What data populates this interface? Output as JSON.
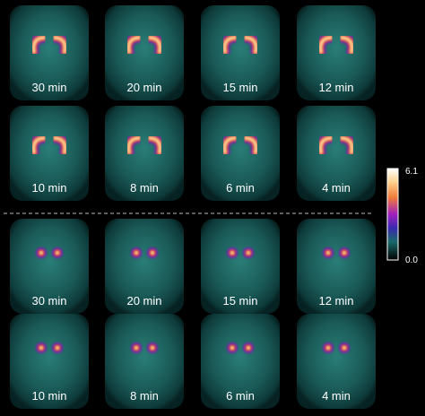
{
  "groups": [
    {
      "rows": [
        [
          "30 min",
          "20 min",
          "15 min",
          "12 min"
        ],
        [
          "10 min",
          "8 min",
          "6 min",
          "4 min"
        ]
      ]
    },
    {
      "rows": [
        [
          "30 min",
          "20 min",
          "15 min",
          "12 min"
        ],
        [
          "10 min",
          "8 min",
          "6 min",
          "4 min"
        ]
      ]
    }
  ],
  "colorbar": {
    "max": "6.1",
    "min": "0.0"
  }
}
